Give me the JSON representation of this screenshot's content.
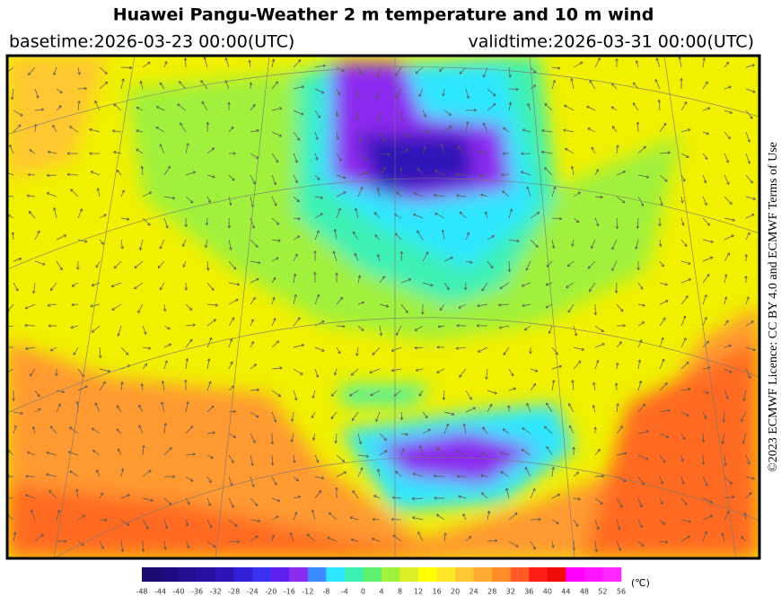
{
  "header": {
    "title": "Huawei Pangu-Weather  2 m temperature and 10 m wind",
    "basetime": "basetime:2026-03-23 00:00(UTC)",
    "validtime": "validtime:2026-03-31 00:00(UTC)"
  },
  "license": "©2023 ECMWF Licence: CC BY 4.0 and ECMWF  Terms of Use",
  "colorbar": {
    "unit": "(℃)",
    "ticks": [
      -48,
      -44,
      -40,
      -36,
      -32,
      -28,
      -24,
      -20,
      -16,
      -12,
      -8,
      -4,
      0,
      4,
      8,
      12,
      16,
      20,
      24,
      28,
      32,
      36,
      40,
      44,
      48,
      52,
      56
    ],
    "colors": [
      "#1a0a6e",
      "#1e0c80",
      "#230f90",
      "#2a10a0",
      "#2d14b8",
      "#3020d8",
      "#3c30f0",
      "#6020f0",
      "#8c2cf0",
      "#3c8cff",
      "#2ee6ff",
      "#3cf0b4",
      "#60f070",
      "#a0f03c",
      "#dcf028",
      "#ffff00",
      "#ffe628",
      "#ffc832",
      "#ffaa32",
      "#ff8c28",
      "#ff5a28",
      "#ff1e14",
      "#f00a0a",
      "#ff00ff",
      "#ff14ff",
      "#ff28ff"
    ]
  }
}
